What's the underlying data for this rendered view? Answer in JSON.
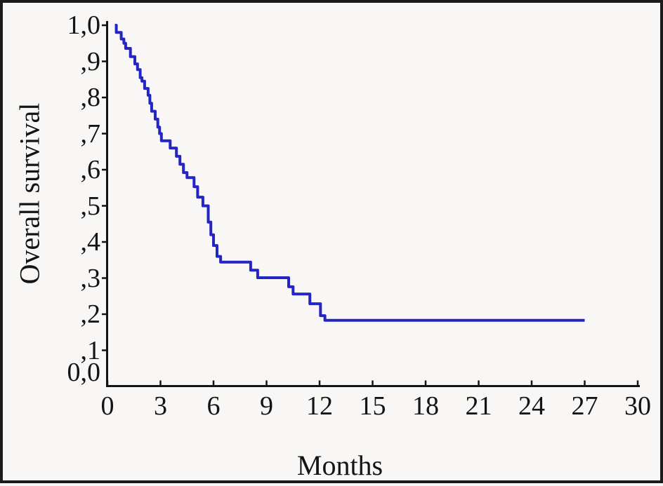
{
  "chart_data": {
    "type": "line",
    "subtype": "kaplan-meier-step",
    "title": "",
    "xlabel": "Months",
    "ylabel": "Overall survival",
    "xlim": [
      0,
      30
    ],
    "ylim": [
      0.0,
      1.0
    ],
    "grid": false,
    "legend": "none",
    "curve_color": "#2524c4",
    "axis_color": "#141414",
    "background_color": "#f8f7f5",
    "frame_border_color": "#1b1b1b",
    "x_ticks": [
      {
        "value": 0,
        "label": "0"
      },
      {
        "value": 3,
        "label": "3"
      },
      {
        "value": 6,
        "label": "6"
      },
      {
        "value": 9,
        "label": "9"
      },
      {
        "value": 12,
        "label": "12"
      },
      {
        "value": 15,
        "label": "15"
      },
      {
        "value": 18,
        "label": "18"
      },
      {
        "value": 21,
        "label": "21"
      },
      {
        "value": 24,
        "label": "24"
      },
      {
        "value": 27,
        "label": "27"
      },
      {
        "value": 30,
        "label": "30"
      }
    ],
    "y_ticks": [
      {
        "value": 1.0,
        "label": "1,0"
      },
      {
        "value": 0.9,
        "label": ",9"
      },
      {
        "value": 0.8,
        "label": ",8"
      },
      {
        "value": 0.7,
        "label": ",7"
      },
      {
        "value": 0.6,
        "label": ",6"
      },
      {
        "value": 0.5,
        "label": ",5"
      },
      {
        "value": 0.4,
        "label": ",4"
      },
      {
        "value": 0.3,
        "label": ",3"
      },
      {
        "value": 0.2,
        "label": ",2"
      },
      {
        "value": 0.1,
        "label": ",1"
      },
      {
        "value": 0.0,
        "label": "0,0"
      }
    ],
    "curve_start": {
      "t": 0.42,
      "survival": 1.0
    },
    "curve_end_t": 27.0,
    "steps": [
      [
        0.5,
        0.98
      ],
      [
        0.78,
        0.962
      ],
      [
        0.93,
        0.95
      ],
      [
        1.03,
        0.936
      ],
      [
        1.3,
        0.913
      ],
      [
        1.55,
        0.893
      ],
      [
        1.7,
        0.877
      ],
      [
        1.85,
        0.855
      ],
      [
        1.95,
        0.845
      ],
      [
        2.1,
        0.825
      ],
      [
        2.3,
        0.806
      ],
      [
        2.4,
        0.784
      ],
      [
        2.5,
        0.762
      ],
      [
        2.7,
        0.74
      ],
      [
        2.85,
        0.718
      ],
      [
        2.95,
        0.7
      ],
      [
        3.05,
        0.68
      ],
      [
        3.55,
        0.66
      ],
      [
        3.9,
        0.637
      ],
      [
        4.1,
        0.615
      ],
      [
        4.3,
        0.592
      ],
      [
        4.5,
        0.578
      ],
      [
        4.9,
        0.553
      ],
      [
        5.1,
        0.524
      ],
      [
        5.4,
        0.5
      ],
      [
        5.7,
        0.455
      ],
      [
        5.85,
        0.42
      ],
      [
        6.0,
        0.39
      ],
      [
        6.2,
        0.36
      ],
      [
        6.4,
        0.344
      ],
      [
        8.1,
        0.322
      ],
      [
        8.5,
        0.301
      ],
      [
        10.25,
        0.276
      ],
      [
        10.5,
        0.256
      ],
      [
        11.45,
        0.229
      ],
      [
        12.05,
        0.196
      ],
      [
        12.3,
        0.183
      ]
    ]
  }
}
